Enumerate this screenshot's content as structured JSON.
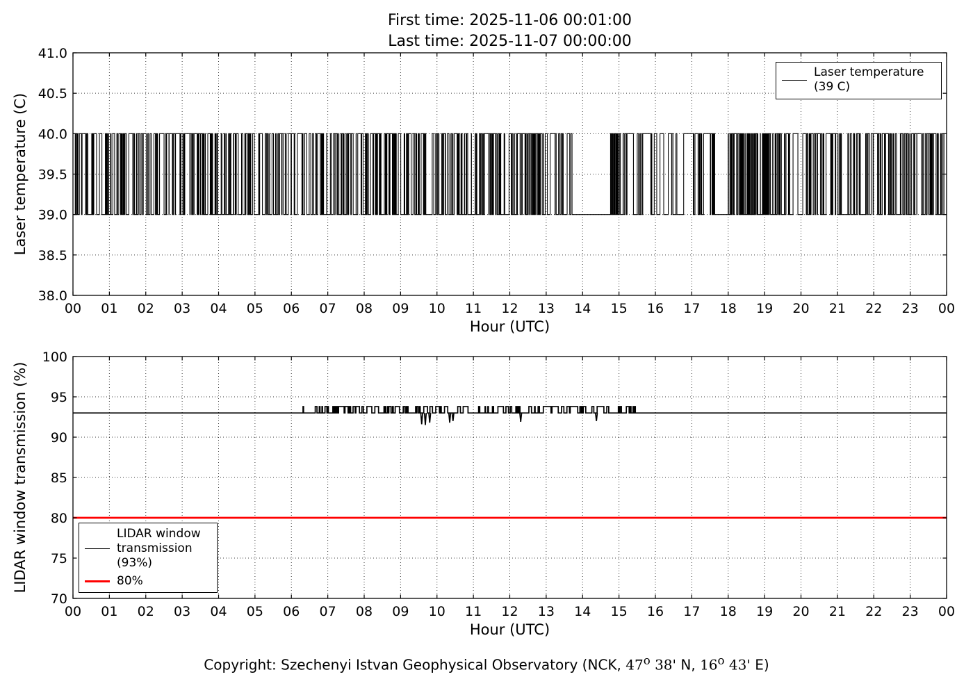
{
  "figure": {
    "title_line1": "First time: 2025-11-06 00:01:00",
    "title_line2": "Last time: 2025-11-07 00:00:00",
    "background": "#ffffff",
    "copyright": {
      "prefix": "Copyright: Szechenyi Istvan Geophysical Observatory (NCK, ",
      "lat_deg": "47",
      "deg_symbol": "o",
      "lat_min": " 38' ",
      "lat_hem": "N, ",
      "lon_deg": "16",
      "lon_min": " 43' ",
      "lon_hem": "E)"
    }
  },
  "chart_data": [
    {
      "type": "line",
      "name": "laser-temperature",
      "xlabel": "Hour (UTC)",
      "ylabel": "Laser temperature (C)",
      "xlim": [
        0,
        24
      ],
      "ylim": [
        38.0,
        41.0
      ],
      "grid": true,
      "xticks": [
        0,
        1,
        2,
        3,
        4,
        5,
        6,
        7,
        8,
        9,
        10,
        11,
        12,
        13,
        14,
        15,
        16,
        17,
        18,
        19,
        20,
        21,
        22,
        23,
        24
      ],
      "xtick_labels": [
        "00",
        "01",
        "02",
        "03",
        "04",
        "05",
        "06",
        "07",
        "08",
        "09",
        "10",
        "11",
        "12",
        "13",
        "14",
        "15",
        "16",
        "17",
        "18",
        "19",
        "20",
        "21",
        "22",
        "23",
        "00"
      ],
      "yticks": [
        38.0,
        38.5,
        39.0,
        39.5,
        40.0,
        40.5,
        41.0
      ],
      "ytick_labels": [
        "38.0",
        "38.5",
        "39.0",
        "39.5",
        "40.0",
        "40.5",
        "41.0"
      ],
      "legend": {
        "position": "upper-right",
        "entries": [
          {
            "label_lines": [
              "Laser temperature",
              "(39 C)"
            ],
            "color": "#000000",
            "linewidth": 1.6
          }
        ]
      },
      "series": [
        {
          "name": "Laser temperature (39 C)",
          "color": "#000000",
          "waveform": "random-telegraph",
          "low": 39.0,
          "high": 40.0,
          "seed": 20,
          "segments": [
            {
              "start": 0.02,
              "end": 13.75,
              "mode": "toggle",
              "mean_dwell_hours": 0.03
            },
            {
              "start": 13.75,
              "end": 14.76,
              "mode": "flat",
              "value": 39.0
            },
            {
              "start": 14.76,
              "end": 15.15,
              "mode": "toggle",
              "mean_dwell_hours": 0.015
            },
            {
              "start": 15.15,
              "end": 17.66,
              "mode": "toggle",
              "mean_dwell_hours": 0.05
            },
            {
              "start": 17.66,
              "end": 17.98,
              "mode": "flat",
              "value": 39.0
            },
            {
              "start": 17.98,
              "end": 19.25,
              "mode": "toggle",
              "mean_dwell_hours": 0.016
            },
            {
              "start": 19.25,
              "end": 24.0,
              "mode": "toggle",
              "mean_dwell_hours": 0.03
            }
          ]
        }
      ]
    },
    {
      "type": "line",
      "name": "lidar-window-transmission",
      "xlabel": "Hour (UTC)",
      "ylabel": "LIDAR window transmission (%)",
      "xlim": [
        0,
        24
      ],
      "ylim": [
        70,
        100
      ],
      "grid": true,
      "xticks": [
        0,
        1,
        2,
        3,
        4,
        5,
        6,
        7,
        8,
        9,
        10,
        11,
        12,
        13,
        14,
        15,
        16,
        17,
        18,
        19,
        20,
        21,
        22,
        23,
        24
      ],
      "xtick_labels": [
        "00",
        "01",
        "02",
        "03",
        "04",
        "05",
        "06",
        "07",
        "08",
        "09",
        "10",
        "11",
        "12",
        "13",
        "14",
        "15",
        "16",
        "17",
        "18",
        "19",
        "20",
        "21",
        "22",
        "23",
        "00"
      ],
      "yticks": [
        70,
        75,
        80,
        85,
        90,
        95,
        100
      ],
      "ytick_labels": [
        "70",
        "75",
        "80",
        "85",
        "90",
        "95",
        "100"
      ],
      "legend": {
        "position": "lower-left",
        "entries": [
          {
            "label_lines": [
              "LIDAR window",
              "transmission",
              "(93%)"
            ],
            "color": "#000000",
            "linewidth": 1.6
          },
          {
            "label_lines": [
              "80%"
            ],
            "color": "#ff0000",
            "linewidth": 3.5
          }
        ]
      },
      "series": [
        {
          "name": "LIDAR window transmission (93%)",
          "color": "#000000",
          "baseline": 93.0,
          "active_start": 6.3,
          "active_end": 15.45,
          "bump_high": 93.8,
          "mean_flat_hours": 0.085,
          "mean_bump_hours": 0.04,
          "seed": 7,
          "down_spikes": [
            {
              "x": 9.58,
              "y": 91.6
            },
            {
              "x": 9.68,
              "y": 91.5
            },
            {
              "x": 9.8,
              "y": 91.8
            },
            {
              "x": 10.35,
              "y": 91.8
            },
            {
              "x": 10.44,
              "y": 92.0
            },
            {
              "x": 12.3,
              "y": 91.9
            },
            {
              "x": 14.38,
              "y": 92.0
            }
          ]
        },
        {
          "name": "80%",
          "color": "#ff0000",
          "constant": 80.0,
          "linewidth": 2.8
        }
      ]
    }
  ]
}
